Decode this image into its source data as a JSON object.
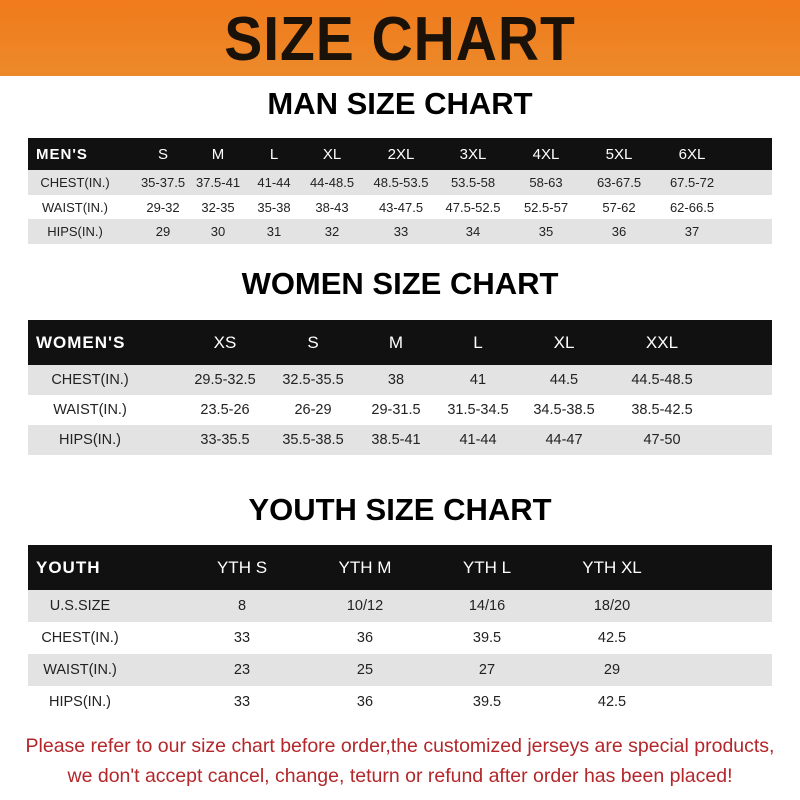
{
  "banner_title": "SIZE CHART",
  "men": {
    "title": "MAN SIZE CHART",
    "header": [
      "MEN'S",
      "S",
      "M",
      "L",
      "XL",
      "2XL",
      "3XL",
      "4XL",
      "5XL",
      "6XL"
    ],
    "rows": [
      [
        "CHEST(IN.)",
        "35-37.5",
        "37.5-41",
        "41-44",
        "44-48.5",
        "48.5-53.5",
        "53.5-58",
        "58-63",
        "63-67.5",
        "67.5-72"
      ],
      [
        "WAIST(IN.)",
        "29-32",
        "32-35",
        "35-38",
        "38-43",
        "43-47.5",
        "47.5-52.5",
        "52.5-57",
        "57-62",
        "62-66.5"
      ],
      [
        "HIPS(IN.)",
        "29",
        "30",
        "31",
        "32",
        "33",
        "34",
        "35",
        "36",
        "37"
      ]
    ]
  },
  "women": {
    "title": "WOMEN SIZE CHART",
    "header": [
      "WOMEN'S",
      "XS",
      "S",
      "M",
      "L",
      "XL",
      "XXL"
    ],
    "rows": [
      [
        "CHEST(IN.)",
        "29.5-32.5",
        "32.5-35.5",
        "38",
        "41",
        "44.5",
        "44.5-48.5"
      ],
      [
        "WAIST(IN.)",
        "23.5-26",
        "26-29",
        "29-31.5",
        "31.5-34.5",
        "34.5-38.5",
        "38.5-42.5"
      ],
      [
        "HIPS(IN.)",
        "33-35.5",
        "35.5-38.5",
        "38.5-41",
        "41-44",
        "44-47",
        "47-50"
      ]
    ]
  },
  "youth": {
    "title": "YOUTH SIZE CHART",
    "header": [
      "YOUTH",
      "YTH S",
      "YTH M",
      "YTH L",
      "YTH XL"
    ],
    "rows": [
      [
        "U.S.SIZE",
        "8",
        "10/12",
        "14/16",
        "18/20"
      ],
      [
        "CHEST(IN.)",
        "33",
        "36",
        "39.5",
        "42.5"
      ],
      [
        "WAIST(IN.)",
        "23",
        "25",
        "27",
        "29"
      ],
      [
        "HIPS(IN.)",
        "33",
        "36",
        "39.5",
        "42.5"
      ]
    ]
  },
  "footer": {
    "line1": "Please refer to our size chart before order,the customized jerseys are special products,",
    "line2": "we don't accept cancel, change, teturn or refund after order has been placed!"
  },
  "colors": {
    "banner": "#f07a1c",
    "header_row": "#111111",
    "stripe": "#e3e3e3",
    "footer_text": "#b3262a"
  }
}
